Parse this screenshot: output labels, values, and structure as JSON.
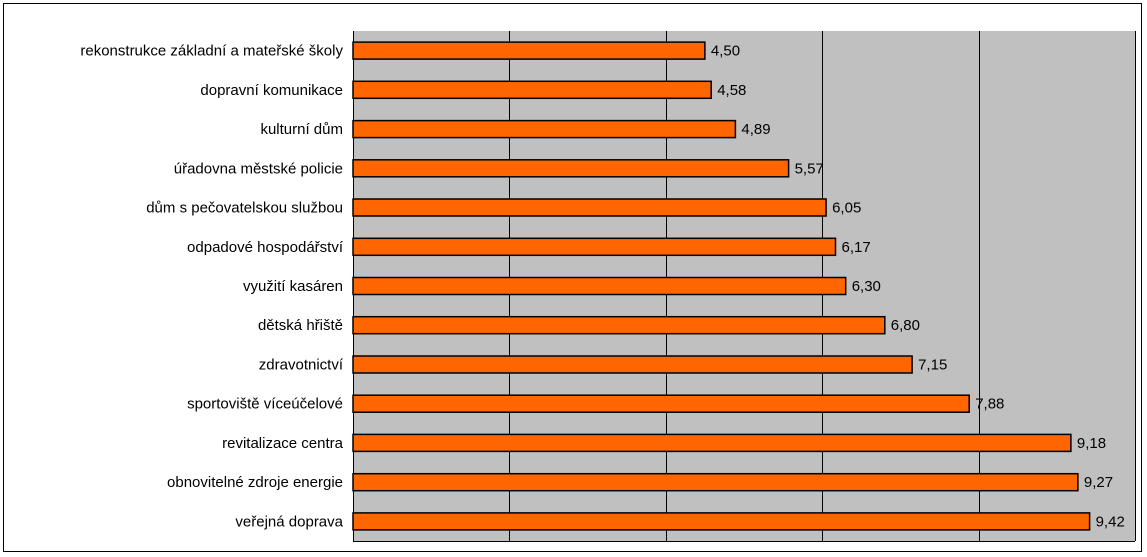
{
  "chart_data": {
    "type": "bar",
    "orientation": "horizontal",
    "categories": [
      "rekonstrukce základní a mateřské školy",
      "dopravní komunikace",
      "kulturní dům",
      "úřadovna městské policie",
      "dům s pečovatelskou službou",
      "odpadové hospodářství",
      "využití kasáren",
      "dětská hřiště",
      "zdravotnictví",
      "sportoviště víceúčelové",
      "revitalizace centra",
      "obnovitelné zdroje energie",
      "veřejná doprava"
    ],
    "values": [
      4.5,
      4.58,
      4.89,
      5.57,
      6.05,
      6.17,
      6.3,
      6.8,
      7.15,
      7.88,
      9.18,
      9.27,
      9.42
    ],
    "value_labels": [
      "4,50",
      "4,58",
      "4,89",
      "5,57",
      "6,05",
      "6,17",
      "6,30",
      "6,80",
      "7,15",
      "7,88",
      "9,18",
      "9,27",
      "9,42"
    ],
    "xlim": [
      0,
      10
    ],
    "gridlines": [
      0,
      2,
      4,
      6,
      8,
      10
    ],
    "grid": true,
    "legend": "none",
    "colors": {
      "bar": "#ff6600",
      "bar_border": "#000000",
      "plot_background": "#c0c0c0",
      "gridline": "#000000"
    }
  }
}
